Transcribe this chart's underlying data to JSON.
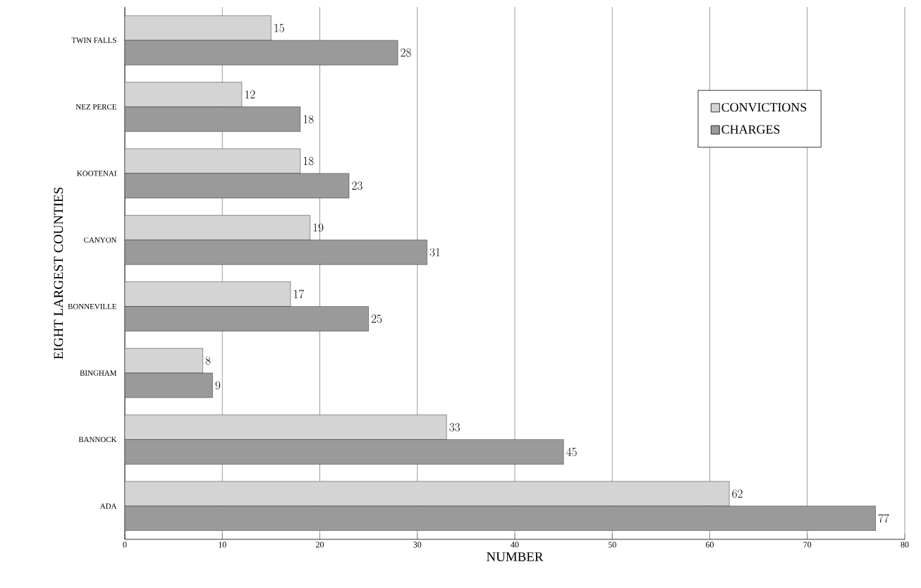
{
  "chart_data": {
    "type": "bar",
    "orientation": "horizontal",
    "xlabel": "NUMBER",
    "ylabel": "EIGHT LARGEST COUNTIES",
    "categories": [
      "TWIN FALLS",
      "NEZ PERCE",
      "KOOTENAI",
      "CANYON",
      "BONNEVILLE",
      "BINGHAM",
      "BANNOCK",
      "ADA"
    ],
    "series": [
      {
        "name": "CONVICTIONS",
        "color": "#d4d4d4",
        "values": [
          15,
          12,
          18,
          19,
          17,
          8,
          33,
          62
        ]
      },
      {
        "name": "CHARGES",
        "color": "#9a9a9a",
        "values": [
          28,
          18,
          23,
          31,
          25,
          9,
          45,
          77
        ]
      }
    ],
    "xlim": [
      0,
      80
    ],
    "xticks": [
      0,
      10,
      20,
      30,
      40,
      50,
      60,
      70,
      80
    ],
    "grid": "x",
    "legend": "top right",
    "data_labels": true
  }
}
